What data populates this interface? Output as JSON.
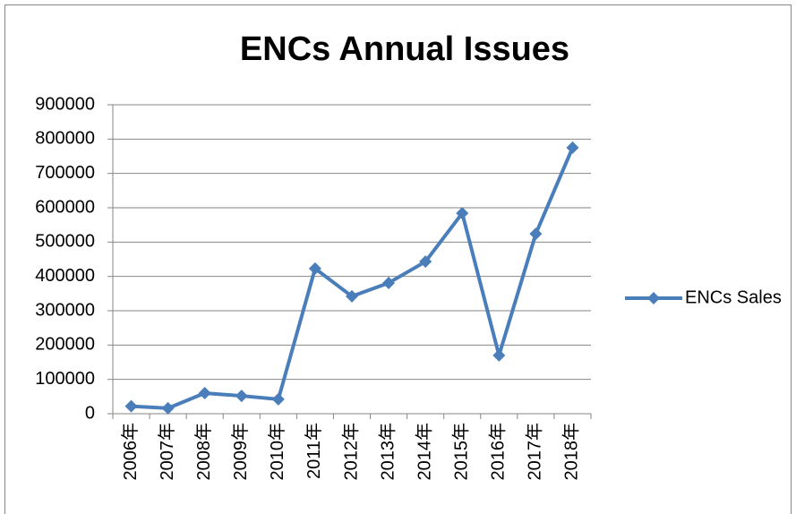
{
  "chart_data": {
    "type": "line",
    "title": "ENCs Annual Issues",
    "categories": [
      "2006年",
      "2007年",
      "2008年",
      "2009年",
      "2010年",
      "2011年",
      "2012年",
      "2013年",
      "2014年",
      "2015年",
      "2016年",
      "2017年",
      "2018年"
    ],
    "series": [
      {
        "name": "ENCs Sales",
        "color": "#4a7ebb",
        "values": [
          22000,
          16000,
          60000,
          52000,
          42000,
          423000,
          342000,
          381000,
          443000,
          584000,
          170000,
          524000,
          775000
        ]
      }
    ],
    "ylim": [
      0,
      900000
    ],
    "yticks": [
      0,
      100000,
      200000,
      300000,
      400000,
      500000,
      600000,
      700000,
      800000,
      900000
    ],
    "grid": true,
    "legend": "right"
  }
}
